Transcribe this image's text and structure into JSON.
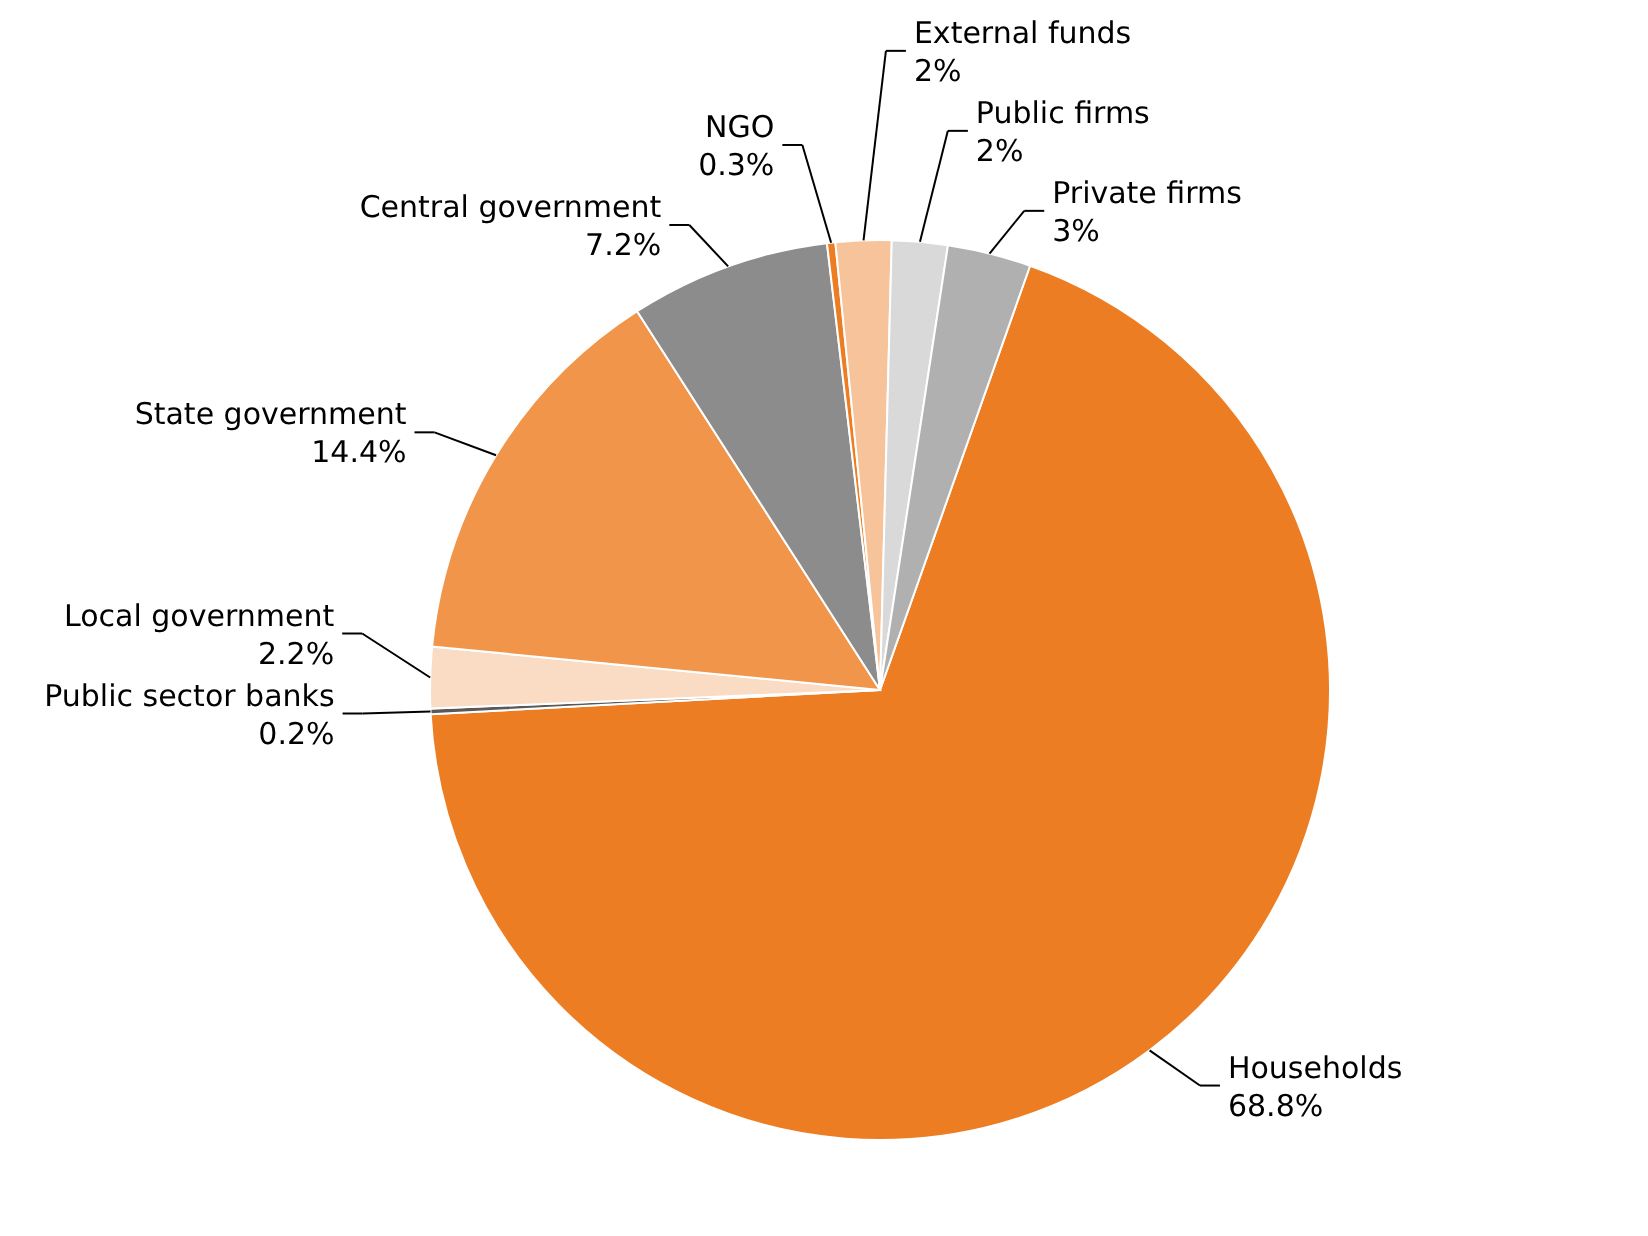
{
  "chart_data": {
    "type": "pie",
    "categories": [
      "Households",
      "Public sector banks",
      "Local government",
      "State government",
      "Central government",
      "NGO",
      "External funds",
      "Public firms",
      "Private firms"
    ],
    "values": [
      68.8,
      0.2,
      2.2,
      14.4,
      7.2,
      0.3,
      2,
      2,
      3
    ],
    "colors": [
      "#ed7d22",
      "#595959",
      "#fadcc4",
      "#f0954a",
      "#8c8c8c",
      "#ed7d22",
      "#f7c39a",
      "#d9d9d9",
      "#b0b0b0"
    ],
    "value_labels": [
      "68.8%",
      "0.2%",
      "2.2%",
      "14.4%",
      "7.2%",
      "0.3%",
      "2%",
      "2%",
      "3%"
    ]
  }
}
